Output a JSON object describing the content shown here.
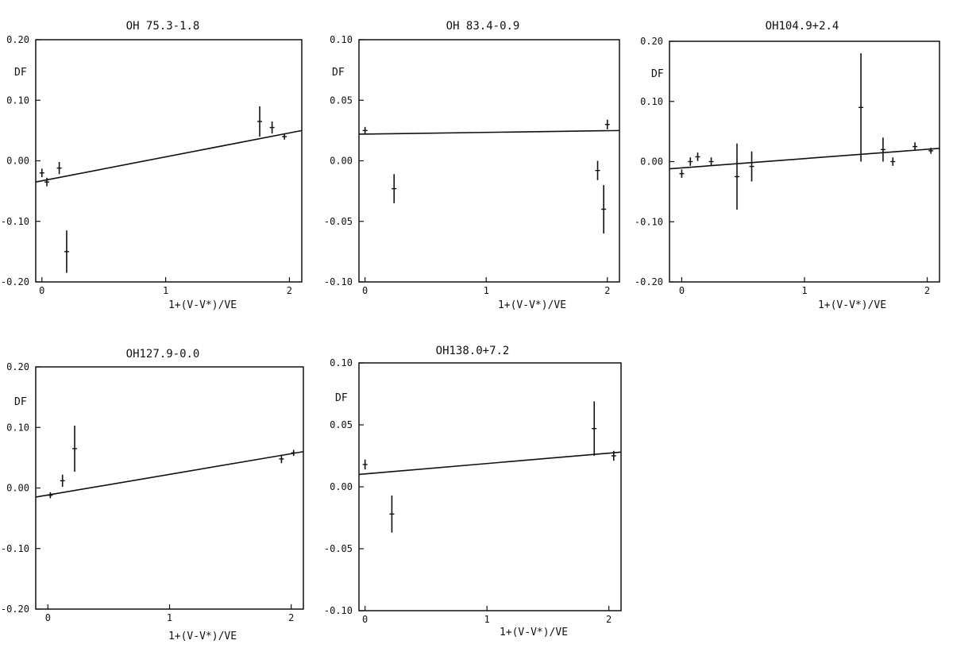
{
  "style": {
    "ink": "#111111",
    "background": "#ffffff"
  },
  "chart_data": [
    {
      "type": "scatter",
      "title": "OH 75.3-1.8",
      "xlabel": "1+(V-V*)/VE",
      "ylabel": "DF",
      "xlim": [
        -0.05,
        2.1
      ],
      "ylim": [
        -0.2,
        0.2
      ],
      "xticks": [
        "0",
        "1",
        "2"
      ],
      "yticks": [
        "0.20",
        "0.10",
        "0.00",
        "-0.10",
        "-0.20"
      ],
      "fit_line": {
        "x": [
          -0.05,
          2.1
        ],
        "y": [
          -0.035,
          0.05
        ]
      },
      "points": [
        {
          "x": 0.0,
          "y": -0.02,
          "err": 0.007
        },
        {
          "x": 0.04,
          "y": -0.035,
          "err": 0.007
        },
        {
          "x": 0.14,
          "y": -0.012,
          "err": 0.01
        },
        {
          "x": 0.2,
          "y": -0.15,
          "err": 0.035
        },
        {
          "x": 1.76,
          "y": 0.065,
          "err": 0.025
        },
        {
          "x": 1.86,
          "y": 0.055,
          "err": 0.01
        },
        {
          "x": 1.96,
          "y": 0.04,
          "err": 0.005
        }
      ]
    },
    {
      "type": "scatter",
      "title": "OH 83.4-0.9",
      "xlabel": "1+(V-V*)/VE",
      "ylabel": "DF",
      "xlim": [
        -0.05,
        2.1
      ],
      "ylim": [
        -0.1,
        0.1
      ],
      "xticks": [
        "0",
        "1",
        "2"
      ],
      "yticks": [
        "0.10",
        "0.05",
        "0.00",
        "-0.05",
        "-0.10"
      ],
      "fit_line": {
        "x": [
          -0.05,
          2.1
        ],
        "y": [
          0.022,
          0.025
        ]
      },
      "points": [
        {
          "x": 0.0,
          "y": 0.025,
          "err": 0.003
        },
        {
          "x": 0.24,
          "y": -0.023,
          "err": 0.012
        },
        {
          "x": 1.92,
          "y": -0.008,
          "err": 0.008
        },
        {
          "x": 1.97,
          "y": -0.04,
          "err": 0.02
        },
        {
          "x": 2.0,
          "y": 0.03,
          "err": 0.004
        }
      ]
    },
    {
      "type": "scatter",
      "title": "OH104.9+2.4",
      "xlabel": "1+(V-V*)/VE",
      "ylabel": "DF",
      "xlim": [
        -0.1,
        2.1
      ],
      "ylim": [
        -0.2,
        0.2
      ],
      "xticks": [
        "0",
        "1",
        "2"
      ],
      "yticks": [
        "0.20",
        "0.10",
        "0.00",
        "-0.10",
        "-0.20"
      ],
      "fit_line": {
        "x": [
          -0.1,
          2.1
        ],
        "y": [
          -0.012,
          0.022
        ]
      },
      "points": [
        {
          "x": 0.0,
          "y": -0.02,
          "err": 0.007
        },
        {
          "x": 0.07,
          "y": 0.0,
          "err": 0.007
        },
        {
          "x": 0.13,
          "y": 0.008,
          "err": 0.007
        },
        {
          "x": 0.24,
          "y": 0.0,
          "err": 0.007
        },
        {
          "x": 0.45,
          "y": -0.025,
          "err": 0.055
        },
        {
          "x": 0.57,
          "y": -0.008,
          "err": 0.025
        },
        {
          "x": 1.46,
          "y": 0.09,
          "err": 0.09
        },
        {
          "x": 1.64,
          "y": 0.02,
          "err": 0.02
        },
        {
          "x": 1.72,
          "y": 0.0,
          "err": 0.007
        },
        {
          "x": 1.9,
          "y": 0.025,
          "err": 0.007
        },
        {
          "x": 2.03,
          "y": 0.018,
          "err": 0.005
        }
      ]
    },
    {
      "type": "scatter",
      "title": "OH127.9-0.0",
      "xlabel": "1+(V-V*)/VE",
      "ylabel": "DF",
      "xlim": [
        -0.1,
        2.1
      ],
      "ylim": [
        -0.2,
        0.2
      ],
      "xticks": [
        "0",
        "1",
        "2"
      ],
      "yticks": [
        "0.20",
        "0.10",
        "0.00",
        "-0.10",
        "-0.20"
      ],
      "fit_line": {
        "x": [
          -0.1,
          2.1
        ],
        "y": [
          -0.015,
          0.06
        ]
      },
      "points": [
        {
          "x": 0.02,
          "y": -0.012,
          "err": 0.005
        },
        {
          "x": 0.12,
          "y": 0.012,
          "err": 0.01
        },
        {
          "x": 0.22,
          "y": 0.065,
          "err": 0.038
        },
        {
          "x": 1.92,
          "y": 0.048,
          "err": 0.007
        },
        {
          "x": 2.02,
          "y": 0.058,
          "err": 0.005
        }
      ]
    },
    {
      "type": "scatter",
      "title": "OH138.0+7.2",
      "xlabel": "1+(V-V*)/VE",
      "ylabel": "DF",
      "xlim": [
        -0.05,
        2.1
      ],
      "ylim": [
        -0.1,
        0.1
      ],
      "xticks": [
        "0",
        "1",
        "2"
      ],
      "yticks": [
        "0.10",
        "0.05",
        "0.00",
        "-0.05",
        "-0.10"
      ],
      "fit_line": {
        "x": [
          -0.05,
          2.1
        ],
        "y": [
          0.01,
          0.028
        ]
      },
      "points": [
        {
          "x": 0.0,
          "y": 0.018,
          "err": 0.004
        },
        {
          "x": 0.22,
          "y": -0.022,
          "err": 0.015
        },
        {
          "x": 1.88,
          "y": 0.047,
          "err": 0.022
        },
        {
          "x": 2.04,
          "y": 0.025,
          "err": 0.004
        }
      ]
    }
  ]
}
